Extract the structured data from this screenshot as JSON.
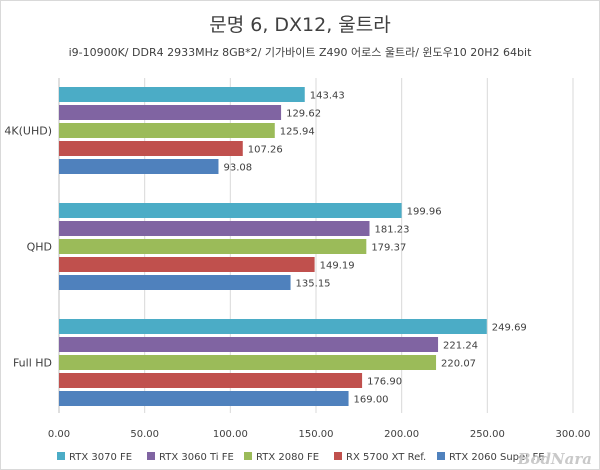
{
  "chart_data": {
    "type": "bar",
    "orientation": "horizontal",
    "title": "문명 6, DX12, 울트라",
    "subtitle": "i9-10900K/ DDR4 2933MHz 8GB*2/ 기가바이트 Z490 어로스 울트라/ 윈도우10 20H2 64bit",
    "categories": [
      "4K(UHD)",
      "QHD",
      "Full HD"
    ],
    "series": [
      {
        "name": "RTX 3070 FE",
        "color": "#4bacc6",
        "values": [
          143.43,
          199.96,
          249.69
        ]
      },
      {
        "name": "RTX 3060 Ti FE",
        "color": "#8064a2",
        "values": [
          129.62,
          181.23,
          221.24
        ]
      },
      {
        "name": "RTX 2080 FE",
        "color": "#9bbb59",
        "values": [
          125.94,
          179.37,
          220.07
        ]
      },
      {
        "name": "RX 5700 XT Ref.",
        "color": "#c0504d",
        "values": [
          107.26,
          149.19,
          176.9
        ]
      },
      {
        "name": "RTX 2060 Super FE",
        "color": "#4f81bd",
        "values": [
          93.08,
          135.15,
          169.0
        ]
      }
    ],
    "xlim": [
      0,
      300
    ],
    "xticks": [
      0,
      50,
      100,
      150,
      200,
      250,
      300
    ],
    "value_decimals": 2,
    "grid": true,
    "legend_position": "bottom"
  },
  "watermark": "BodNara"
}
